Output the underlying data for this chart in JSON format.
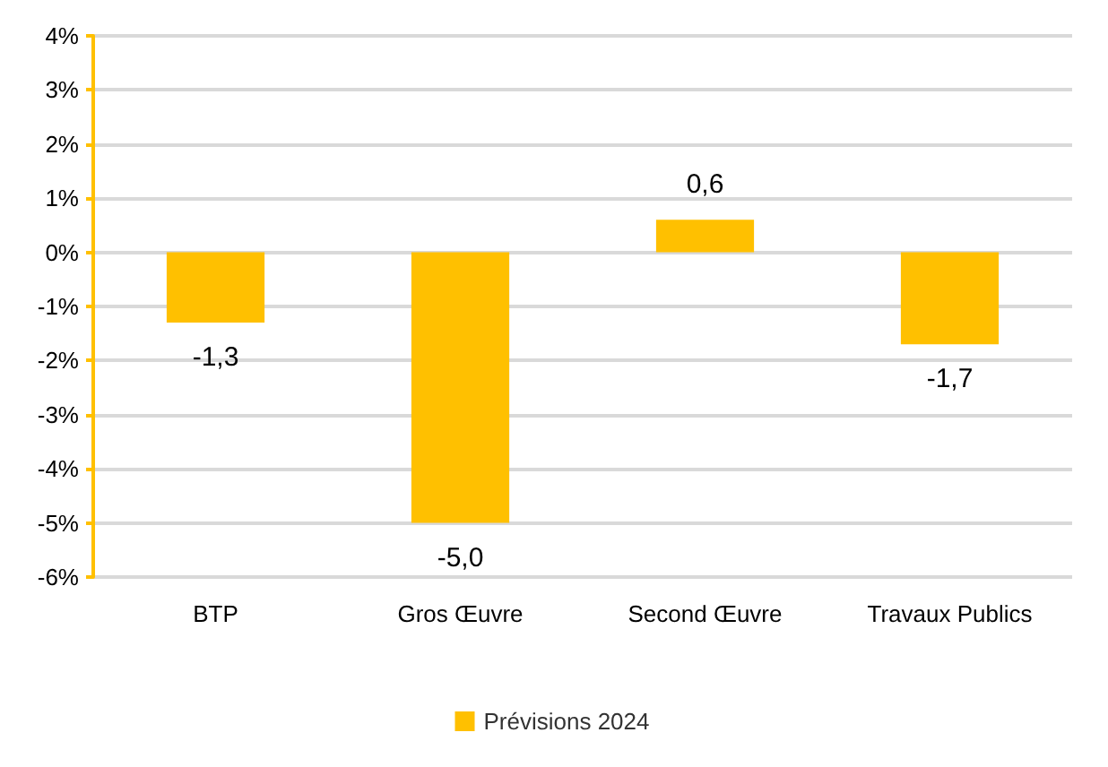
{
  "chart_data": {
    "type": "bar",
    "categories": [
      "BTP",
      "Gros Œuvre",
      "Second Œuvre",
      "Travaux Publics"
    ],
    "series": [
      {
        "name": "Prévisions 2024",
        "color": "#ffc000",
        "values": [
          -1.3,
          -5.0,
          0.6,
          -1.7
        ],
        "value_labels": [
          "-1,3",
          "-5,0",
          "0,6",
          "-1,7"
        ]
      }
    ],
    "ylim": [
      -6,
      4
    ],
    "yticks": [
      {
        "value": -6,
        "label": "-6%"
      },
      {
        "value": -5,
        "label": "-5%"
      },
      {
        "value": -4,
        "label": "-4%"
      },
      {
        "value": -3,
        "label": "-3%"
      },
      {
        "value": -2,
        "label": "-2%"
      },
      {
        "value": -1,
        "label": "-1%"
      },
      {
        "value": 0,
        "label": "0%"
      },
      {
        "value": 1,
        "label": "1%"
      },
      {
        "value": 2,
        "label": "2%"
      },
      {
        "value": 3,
        "label": "3%"
      },
      {
        "value": 4,
        "label": "4%"
      }
    ],
    "grid": "y",
    "legend": "bottom"
  }
}
